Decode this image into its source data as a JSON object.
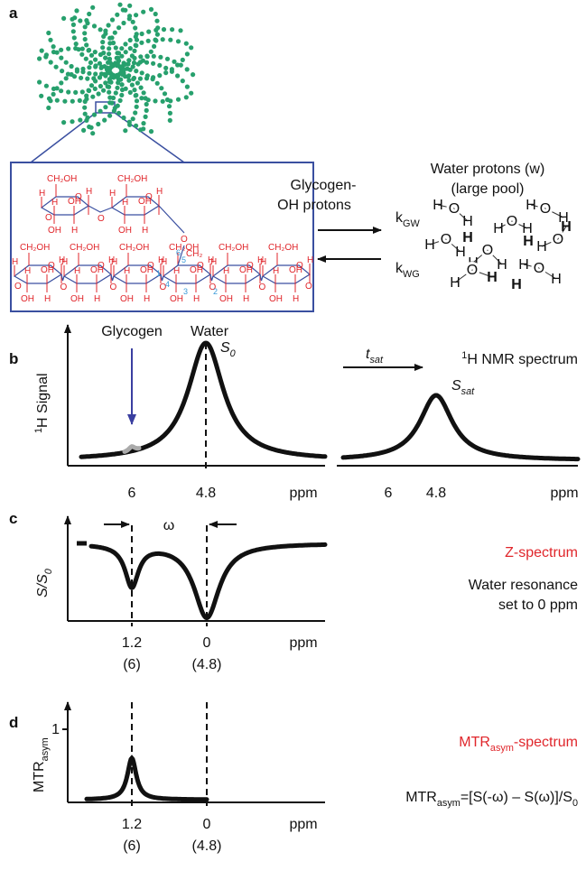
{
  "panel_labels": [
    "a",
    "b",
    "c",
    "d"
  ],
  "panel_a": {
    "glycogen_oh": [
      "Glycogen-",
      "OH protons"
    ],
    "water_protons": [
      "Water protons (w)",
      "(large pool)"
    ],
    "k_gw": {
      "main": "k",
      "sub": "GW"
    },
    "k_wg": {
      "main": "k",
      "sub": "WG"
    },
    "structure": {
      "ch2oh": "CH₂OH",
      "ch2": "CH₂",
      "o": "O",
      "h": "H",
      "oh": "OH",
      "carbon_numbers": [
        "1",
        "2",
        "3",
        "4",
        "5",
        "6"
      ]
    },
    "water": {
      "o": "O",
      "h": "H"
    }
  },
  "panel_b": {
    "header": [
      "Glycogen",
      "Water"
    ],
    "y_label": {
      "sup": "1",
      "main": "H Signal"
    },
    "title": {
      "sup": "1",
      "main": "H NMR spectrum"
    },
    "s0": {
      "main": "S",
      "sub": "0"
    },
    "ssat": {
      "main": "S",
      "sub": "sat"
    },
    "tsat": {
      "main": "t",
      "sub": "sat"
    },
    "ticks": [
      "6",
      "4.8"
    ],
    "x_label": "ppm"
  },
  "panel_c": {
    "y_label": {
      "main": "S/S",
      "sub": "0"
    },
    "omega": "ω",
    "ticks": [
      "1.2",
      "0"
    ],
    "ticks_sub": [
      "(6)",
      "(4.8)"
    ],
    "x_label": "ppm",
    "title": "Z-spectrum",
    "note": [
      "Water resonance",
      "set to 0 ppm"
    ]
  },
  "panel_d": {
    "y_label": {
      "main": "MTR",
      "sub": "asym"
    },
    "y_tick": "1",
    "ticks": [
      "1.2",
      "0"
    ],
    "ticks_sub": [
      "(6)",
      "(4.8)"
    ],
    "x_label": "ppm",
    "title": {
      "main": "MTR",
      "sub": "asym",
      "tail": "-spectrum"
    },
    "formula": {
      "main": "MTR",
      "sub": "asym",
      "tail": "=[S(-ω) – S(ω)]/S",
      "sub2": "0"
    }
  }
}
